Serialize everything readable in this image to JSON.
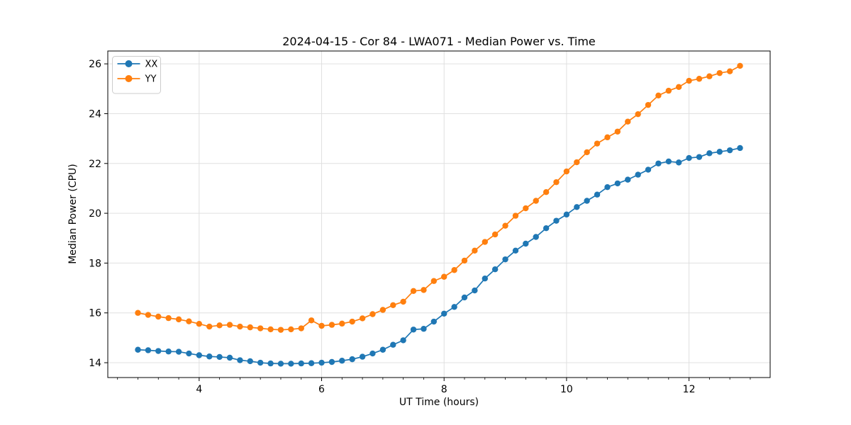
{
  "figure": {
    "background": "#ffffff"
  },
  "chart_data": {
    "type": "line",
    "title": "2024-04-15 - Cor 84 - LWA071 - Median Power vs. Time",
    "xlabel": "UT Time (hours)",
    "ylabel": "Median Power (CPU)",
    "xlim": [
      2.508,
      13.325
    ],
    "ylim": [
      13.404,
      26.516
    ],
    "x_ticks": [
      4,
      6,
      8,
      10,
      12
    ],
    "x_minor_tick_step": 0.3333333,
    "y_ticks": [
      14,
      16,
      18,
      20,
      22,
      24,
      26
    ],
    "grid": true,
    "grid_color": "#e0e0e0",
    "legend_position": "upper left",
    "marker": "o",
    "linestyle": "-",
    "x": [
      3.0,
      3.167,
      3.333,
      3.5,
      3.667,
      3.833,
      4.0,
      4.167,
      4.333,
      4.5,
      4.667,
      4.833,
      5.0,
      5.167,
      5.333,
      5.5,
      5.667,
      5.833,
      6.0,
      6.167,
      6.333,
      6.5,
      6.667,
      6.833,
      7.0,
      7.167,
      7.333,
      7.5,
      7.667,
      7.833,
      8.0,
      8.167,
      8.333,
      8.5,
      8.667,
      8.833,
      9.0,
      9.167,
      9.333,
      9.5,
      9.667,
      9.833,
      10.0,
      10.167,
      10.333,
      10.5,
      10.667,
      10.833,
      11.0,
      11.167,
      11.333,
      11.5,
      11.667,
      11.833,
      12.0,
      12.167,
      12.333,
      12.5,
      12.667,
      12.833
    ],
    "series": [
      {
        "name": "XX",
        "color": "#1f77b4",
        "values": [
          14.52,
          14.5,
          14.47,
          14.45,
          14.44,
          14.37,
          14.3,
          14.25,
          14.23,
          14.2,
          14.1,
          14.06,
          14.0,
          13.97,
          13.96,
          13.96,
          13.97,
          13.98,
          14.0,
          14.03,
          14.08,
          14.14,
          14.24,
          14.37,
          14.52,
          14.72,
          14.9,
          15.33,
          15.36,
          15.65,
          15.97,
          16.24,
          16.62,
          16.9,
          17.38,
          17.75,
          18.15,
          18.5,
          18.78,
          19.05,
          19.4,
          19.7,
          19.95,
          20.25,
          20.5,
          20.75,
          21.05,
          21.2,
          21.35,
          21.55,
          21.75,
          22.0,
          22.08,
          22.04,
          22.22,
          22.26,
          22.41,
          22.47,
          22.53,
          22.62
        ]
      },
      {
        "name": "YY",
        "color": "#ff7f0e",
        "values": [
          16.0,
          15.92,
          15.85,
          15.79,
          15.74,
          15.66,
          15.56,
          15.45,
          15.5,
          15.52,
          15.45,
          15.42,
          15.38,
          15.34,
          15.32,
          15.34,
          15.38,
          15.7,
          15.48,
          15.52,
          15.57,
          15.65,
          15.78,
          15.95,
          16.12,
          16.31,
          16.45,
          16.88,
          16.92,
          17.28,
          17.45,
          17.72,
          18.1,
          18.5,
          18.85,
          19.15,
          19.5,
          19.9,
          20.2,
          20.5,
          20.85,
          21.25,
          21.68,
          22.05,
          22.45,
          22.8,
          23.05,
          23.28,
          23.68,
          23.98,
          24.35,
          24.73,
          24.92,
          25.07,
          25.32,
          25.4,
          25.5,
          25.63,
          25.7,
          25.92
        ]
      }
    ]
  }
}
